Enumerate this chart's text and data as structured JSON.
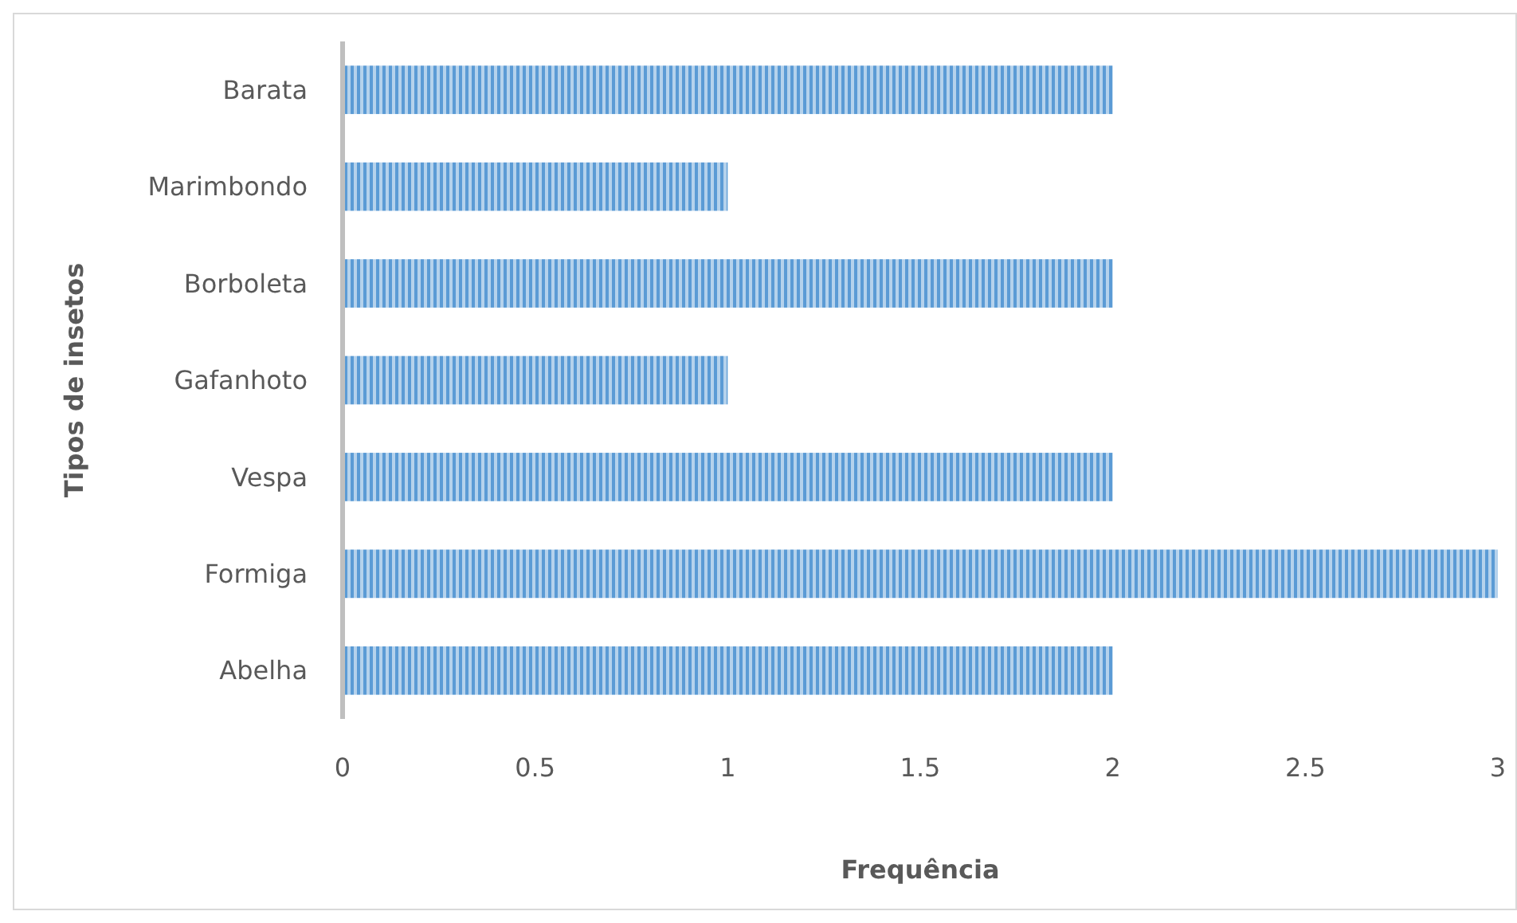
{
  "chart_data": {
    "type": "bar",
    "orientation": "horizontal",
    "categories": [
      "Barata",
      "Marimbondo",
      "Borboleta",
      "Gafanhoto",
      "Vespa",
      "Formiga",
      "Abelha"
    ],
    "values": [
      2,
      1,
      2,
      1,
      2,
      3,
      2
    ],
    "color": "#5b9bd5",
    "xlabel": "Frequência",
    "ylabel": "Tipos de insetos",
    "xlim": [
      0,
      3
    ],
    "xticks": [
      0,
      0.5,
      1,
      1.5,
      2,
      2.5,
      3
    ],
    "grid": false
  }
}
